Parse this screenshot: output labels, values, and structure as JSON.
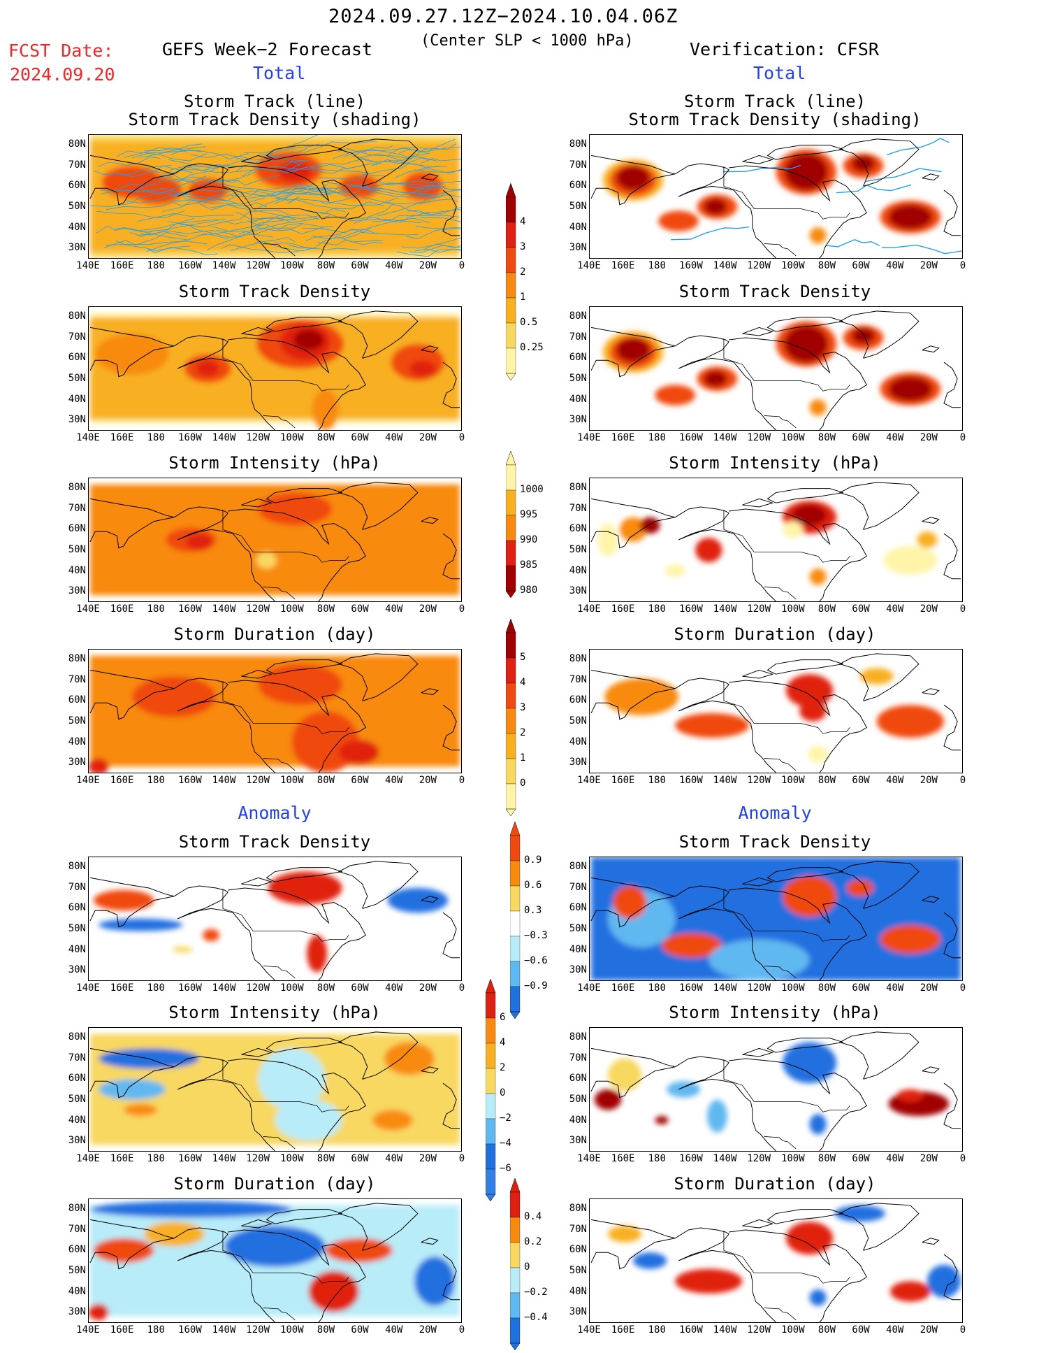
{
  "header": {
    "date_range": "2024.09.27.12Z−2024.10.04.06Z",
    "criterion": "(Center SLP < 1000 hPa)",
    "fcst_label": "FCST Date:",
    "fcst_date": "2024.09.20",
    "left_title": "GEFS Week−2 Forecast",
    "right_title": "Verification: CFSR",
    "total_label": "Total",
    "anomaly_label": "Anomaly"
  },
  "panel_titles": {
    "track_line": "Storm Track (line)",
    "track_shading": "Storm Track Density (shading)",
    "density": "Storm Track Density",
    "intensity": "Storm Intensity (hPa)",
    "duration": "Storm Duration (day)"
  },
  "axes": {
    "x_ticks": [
      "140E",
      "160E",
      "180",
      "160W",
      "140W",
      "120W",
      "100W",
      "80W",
      "60W",
      "40W",
      "20W",
      "0"
    ],
    "y_ticks": [
      "80N",
      "70N",
      "60N",
      "50N",
      "40N",
      "30N"
    ]
  },
  "colorbars": {
    "density_total": [
      "4",
      "3",
      "2",
      "1",
      "0.5",
      "0.25"
    ],
    "intensity_total": [
      "1000",
      "995",
      "990",
      "985",
      "980"
    ],
    "duration_total": [
      "5",
      "4",
      "3",
      "2",
      "1",
      "0"
    ],
    "density_anom": [
      "0.9",
      "0.6",
      "0.3",
      "−0.3",
      "−0.6",
      "−0.9"
    ],
    "intensity_anom": [
      "6",
      "4",
      "2",
      "0",
      "−2",
      "−4",
      "−6"
    ],
    "duration_anom": [
      "0.4",
      "0.2",
      "0",
      "−0.2",
      "−0.4"
    ]
  },
  "colors": {
    "dark_red": "#a00000",
    "red": "#e02010",
    "red_orange": "#f04a10",
    "orange": "#f88a10",
    "amber": "#f8b020",
    "yellow": "#f8d860",
    "pale_yellow": "#fff4a8",
    "pale_blue": "#b8ecf8",
    "light_blue": "#60b8f0",
    "blue": "#2070e0",
    "track_line": "#20a0f0"
  }
}
